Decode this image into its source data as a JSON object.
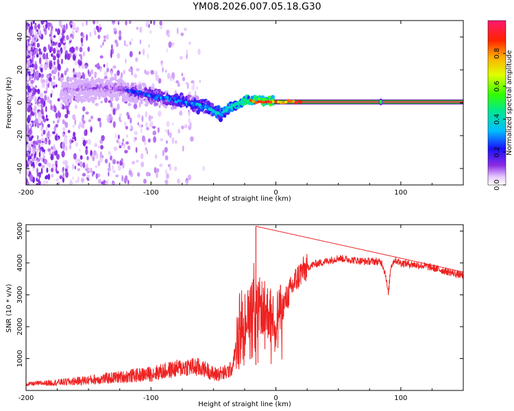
{
  "title": "YM08.2026.007.05.18.G30",
  "chart_data": [
    {
      "type": "heatmap",
      "name": "spectrogram",
      "xlabel": "Height of straight line (km)",
      "ylabel": "Frequency (Hz)",
      "xlim": [
        -200,
        150
      ],
      "ylim": [
        -50,
        50
      ],
      "xticks": [
        -200,
        -100,
        0,
        100
      ],
      "xtick_labels": [
        "-200",
        "-100",
        "0",
        "100"
      ],
      "yticks": [
        -40,
        -20,
        0,
        20,
        40
      ],
      "ytick_labels": [
        "-40",
        "-20",
        "0",
        "20",
        "40"
      ],
      "colorbar": {
        "label": "Normalized spectral amplitude",
        "ticks": [
          0.0,
          0.2,
          0.4,
          0.6,
          0.8
        ],
        "tick_labels": [
          "0.0",
          "0.2",
          "0.4",
          "0.6",
          "0.8"
        ],
        "range": [
          0,
          1
        ]
      },
      "ridge": {
        "x": [
          -170,
          -150,
          -130,
          -110,
          -90,
          -70,
          -55,
          -45,
          -35,
          -25,
          -15,
          -5,
          0,
          20,
          50,
          84,
          150
        ],
        "freq": [
          8,
          9,
          9,
          6,
          3,
          0,
          -3,
          -7,
          -2,
          1,
          2,
          1,
          0.5,
          0.5,
          0.5,
          0.5,
          0.5
        ],
        "amplitude": [
          0.15,
          0.18,
          0.2,
          0.3,
          0.35,
          0.4,
          0.45,
          0.5,
          0.6,
          0.7,
          0.8,
          0.9,
          0.95,
          1.0,
          1.0,
          1.0,
          1.0
        ]
      },
      "noise_extent": [
        -200,
        -57
      ]
    },
    {
      "type": "line",
      "name": "snr",
      "xlabel": "Height of straight line (km)",
      "ylabel": "SNR (10 * v/v)",
      "xlim": [
        -200,
        150
      ],
      "ylim": [
        0,
        5200
      ],
      "xticks": [
        -200,
        -100,
        0,
        100
      ],
      "xtick_labels": [
        "-200",
        "-100",
        "0",
        "100"
      ],
      "yticks": [
        1000,
        2000,
        3000,
        4000,
        5000
      ],
      "ytick_labels": [
        "1000",
        "2000",
        "3000",
        "4000",
        "5000"
      ],
      "color": "#ee2222",
      "series": [
        {
          "name": "SNR",
          "x": [
            -200,
            -180,
            -160,
            -140,
            -120,
            -100,
            -90,
            -80,
            -70,
            -60,
            -55,
            -50,
            -40,
            -35,
            -30,
            -28,
            -25,
            -20,
            -17,
            -15,
            -10,
            -5,
            0,
            5,
            10,
            15,
            20,
            25,
            30,
            40,
            50,
            60,
            70,
            80,
            85,
            88,
            90,
            92,
            95,
            100,
            110,
            120,
            130,
            140,
            150
          ],
          "y": [
            200,
            240,
            290,
            360,
            440,
            520,
            600,
            680,
            750,
            700,
            650,
            500,
            550,
            700,
            1800,
            2600,
            2200,
            2800,
            3300,
            2700,
            2600,
            2400,
            2300,
            2600,
            3000,
            3400,
            3700,
            3850,
            3950,
            4050,
            4150,
            4100,
            4050,
            4050,
            4000,
            3600,
            3000,
            3900,
            4100,
            4000,
            3950,
            3900,
            3800,
            3700,
            3600
          ]
        }
      ],
      "spike": {
        "x": -16,
        "y": 5150
      }
    }
  ]
}
